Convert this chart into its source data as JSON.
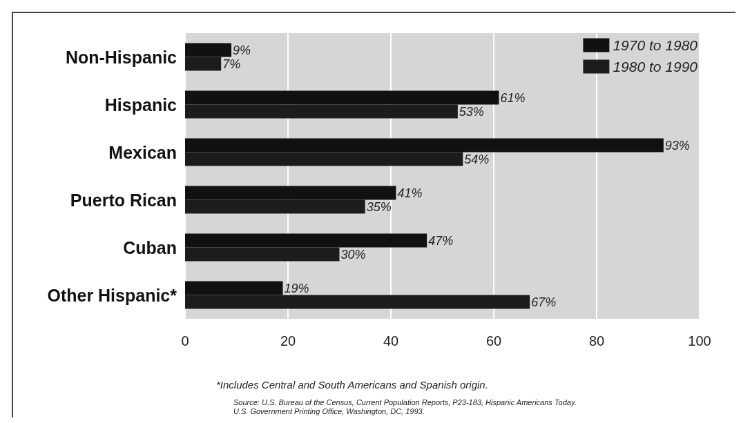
{
  "chart_data": {
    "type": "bar",
    "orientation": "horizontal",
    "categories": [
      "Non-Hispanic",
      "Hispanic",
      "Mexican",
      "Puerto Rican",
      "Cuban",
      "Other Hispanic*"
    ],
    "series": [
      {
        "name": "1970 to 1980",
        "color": "#111111",
        "values": [
          9,
          61,
          93,
          41,
          47,
          19
        ],
        "value_labels": [
          "9%",
          "61%",
          "93%",
          "41%",
          "47%",
          "19%"
        ]
      },
      {
        "name": "1980 to 1990",
        "color": "#1c1c1c",
        "values": [
          7,
          53,
          54,
          35,
          30,
          67
        ],
        "value_labels": [
          "7%",
          "53%",
          "54%",
          "35%",
          "30%",
          "67%"
        ]
      }
    ],
    "xlim": [
      0,
      100
    ],
    "xticks": [
      0,
      20,
      40,
      60,
      80,
      100
    ],
    "grid": "x",
    "legend": "top right",
    "annotations": [
      "*Includes Central and South Americans and Spanish origin.",
      "Source: U.S. Bureau of the Census, Current Population Reports, P23-183, Hispanic Americans Today.\nU.S. Government Printing Office, Washington, DC, 1993."
    ]
  }
}
